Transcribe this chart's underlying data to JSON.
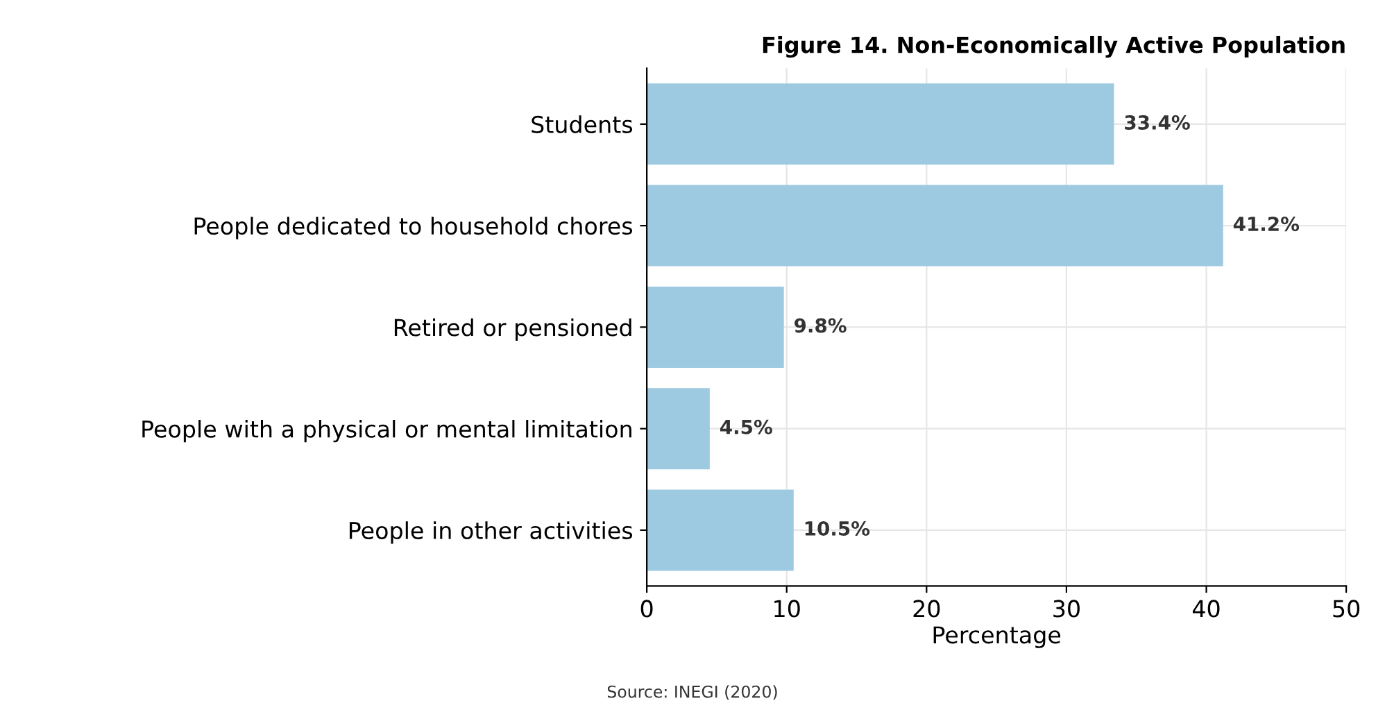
{
  "chart_data": {
    "type": "bar",
    "orientation": "horizontal",
    "title": "Figure 14. Non-Economically Active Population",
    "categories": [
      "Students",
      "People dedicated to household chores",
      "Retired or pensioned",
      "People with a physical or mental limitation",
      "People in other activities"
    ],
    "values": [
      33.4,
      41.2,
      9.8,
      4.5,
      10.5
    ],
    "value_labels": [
      "33.4%",
      "41.2%",
      "9.8%",
      "4.5%",
      "10.5%"
    ],
    "color": "#9ecae1",
    "xlabel": "Percentage",
    "xlim": [
      0,
      50
    ],
    "xticks": [
      0,
      10,
      20,
      30,
      40,
      50
    ],
    "grid": true,
    "annotations": [
      "Source: INEGI (2020)"
    ]
  }
}
